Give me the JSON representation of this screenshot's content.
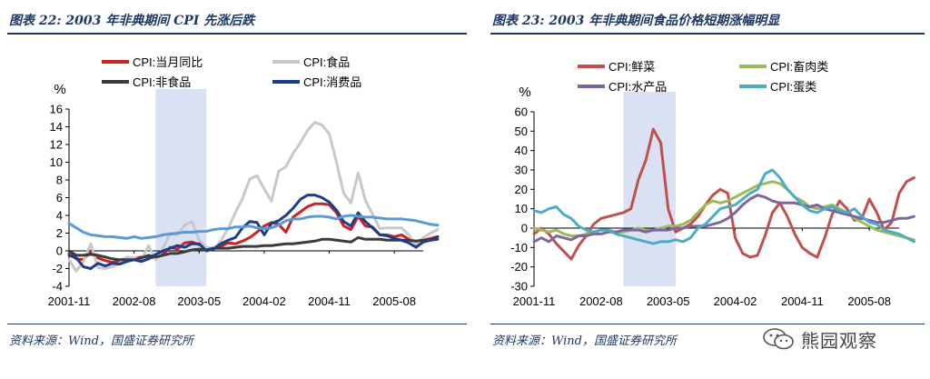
{
  "left_panel": {
    "title": "图表 22:  2003 年非典期间 CPI 先涨后跌",
    "source": "资料来源：Wind，国盛证券研究所"
  },
  "right_panel": {
    "title": "图表 23:  2003 年非典期间食品价格短期涨幅明显",
    "source": "资料来源：Wind，国盛证券研究所"
  },
  "watermark": {
    "text": "熊园观察",
    "icon": "wechat-icon"
  },
  "chart_data": [
    {
      "type": "line",
      "ylabel": "%",
      "ylim": [
        -4,
        16
      ],
      "yticks": [
        -4,
        -2,
        0,
        2,
        4,
        6,
        8,
        10,
        12,
        14,
        16
      ],
      "x_tick_labels": [
        "2001-11",
        "2002-08",
        "2003-05",
        "2004-02",
        "2004-11",
        "2005-08"
      ],
      "x_start": "2001-11",
      "x_end": "2005-12",
      "shaded_region": [
        "2002-11",
        "2003-06"
      ],
      "legend_position": "top",
      "series": [
        {
          "name": "CPI:当月同比",
          "color": "#cc2222",
          "values": [
            -0.3,
            -0.9,
            -1.0,
            0.0,
            -0.8,
            -1.1,
            -1.3,
            -1.1,
            -0.8,
            -0.9,
            -0.7,
            -0.7,
            -0.8,
            -0.4,
            0.4,
            0.2,
            0.9,
            1.0,
            0.7,
            0.3,
            0.3,
            0.5,
            0.9,
            0.8,
            1.1,
            1.5,
            2.1,
            2.8,
            3.2,
            3.0,
            2.1,
            3.8,
            4.4,
            5.0,
            5.3,
            5.3,
            5.2,
            4.3,
            2.8,
            2.4,
            3.9,
            2.8,
            2.7,
            1.8,
            1.8,
            1.6,
            1.8,
            1.3,
            0.9,
            1.2,
            1.4,
            1.6
          ]
        },
        {
          "name": "CPI:食品",
          "color": "#c8c8c8",
          "values": [
            -1.0,
            -2.3,
            -1.2,
            0.8,
            -1.9,
            -2.0,
            -1.8,
            -1.4,
            -0.7,
            -0.8,
            -1.0,
            0.6,
            -1.0,
            0.3,
            2.0,
            1.8,
            2.9,
            3.3,
            1.2,
            0.4,
            0.2,
            1.1,
            2.5,
            4.3,
            5.9,
            8.1,
            8.5,
            7.0,
            5.6,
            9.0,
            9.5,
            11.0,
            12.2,
            13.6,
            14.5,
            14.2,
            13.2,
            10.0,
            6.5,
            5.4,
            8.8,
            5.7,
            4.1,
            2.5,
            2.6,
            2.6,
            2.6,
            1.8,
            0.7,
            1.5,
            2.0,
            2.4
          ]
        },
        {
          "name": "CPI:非食品",
          "color": "#3c3c3c",
          "values": [
            0.0,
            -0.5,
            -0.5,
            -0.4,
            -0.5,
            -0.7,
            -0.9,
            -1.0,
            -1.0,
            -1.0,
            -0.8,
            -0.5,
            -0.7,
            -0.5,
            -0.3,
            -0.3,
            -0.1,
            0.1,
            0.2,
            0.1,
            0.3,
            0.3,
            0.3,
            0.4,
            0.5,
            0.5,
            0.5,
            0.6,
            0.6,
            0.7,
            0.8,
            0.8,
            0.9,
            1.0,
            1.1,
            1.3,
            1.3,
            1.2,
            1.1,
            1.0,
            1.5,
            1.3,
            1.3,
            1.3,
            1.2,
            1.2,
            1.2,
            1.2,
            1.1,
            1.2,
            1.2,
            1.3
          ]
        },
        {
          "name": "CPI:消费品",
          "color": "#1a3e8c",
          "values": [
            -0.5,
            -0.8,
            -1.8,
            -2.0,
            -1.4,
            -1.7,
            -1.4,
            -1.5,
            -1.2,
            -1.0,
            -1.2,
            -0.9,
            -0.4,
            0.0,
            0.3,
            0.6,
            0.4,
            0.8,
            0.8,
            0.0,
            0.2,
            0.8,
            1.2,
            1.5,
            2.6,
            3.3,
            3.2,
            1.8,
            3.1,
            3.4,
            4.0,
            4.8,
            5.8,
            6.3,
            6.3,
            6.0,
            5.5,
            4.6,
            3.3,
            2.8,
            4.3,
            3.3,
            2.6,
            1.8,
            1.7,
            1.4,
            1.2,
            0.9,
            0.4,
            1.0,
            1.2,
            1.6
          ]
        },
        {
          "name": "",
          "color": "#5b9bd5",
          "values": [
            3.1,
            2.6,
            2.1,
            1.8,
            1.7,
            1.6,
            1.6,
            1.5,
            1.4,
            1.6,
            1.4,
            1.5,
            1.6,
            1.8,
            1.9,
            2.0,
            2.1,
            2.1,
            2.2,
            2.2,
            2.4,
            2.5,
            2.5,
            2.7,
            2.7,
            2.8,
            2.6,
            2.5,
            2.6,
            2.9,
            3.4,
            3.6,
            3.6,
            3.8,
            3.9,
            3.9,
            3.8,
            3.6,
            3.9,
            4.0,
            3.9,
            3.8,
            3.8,
            3.7,
            3.6,
            3.6,
            3.6,
            3.5,
            3.4,
            3.2,
            3.0,
            2.9
          ]
        }
      ]
    },
    {
      "type": "line",
      "ylabel": "%",
      "ylim": [
        -30,
        60
      ],
      "yticks": [
        -30,
        -20,
        -10,
        0,
        10,
        20,
        30,
        40,
        50,
        60
      ],
      "x_tick_labels": [
        "2001-11",
        "2002-08",
        "2003-05",
        "2004-02",
        "2004-11",
        "2005-08"
      ],
      "x_start": "2001-11",
      "x_end": "2005-12",
      "shaded_region": [
        "2002-11",
        "2003-06"
      ],
      "legend_position": "top",
      "series": [
        {
          "name": "CPI:鲜菜",
          "color": "#c0504d",
          "values": [
            -3,
            0,
            -3,
            -8,
            -12,
            -16,
            -9,
            -4,
            2,
            5,
            6,
            7,
            8,
            10,
            25,
            35,
            51,
            44,
            10,
            -2,
            0,
            2,
            6,
            12,
            17,
            20,
            18,
            -5,
            -13,
            -15,
            -14,
            -4,
            8,
            13,
            6,
            -3,
            -10,
            -13,
            -15,
            -5,
            7,
            14,
            10,
            4,
            5,
            15,
            8,
            -1,
            3,
            18,
            24,
            26
          ]
        },
        {
          "name": "CPI:畜肉类",
          "color": "#9bbb59",
          "values": [
            0,
            -1,
            -2,
            -1,
            -3,
            -4,
            -4,
            -3,
            -2,
            -1,
            -1,
            -2,
            -2,
            -1,
            0,
            -1,
            -1,
            0,
            1,
            1,
            2,
            4,
            8,
            12,
            14,
            13,
            14,
            16,
            18,
            20,
            22,
            23,
            24,
            23,
            20,
            16,
            14,
            11,
            10,
            11,
            12,
            10,
            8,
            5,
            3,
            1,
            -1,
            -2,
            -3,
            -4,
            -5,
            -6
          ]
        },
        {
          "name": "CPI:水产品",
          "color": "#8064a2",
          "values": [
            -7,
            -5,
            -7,
            -4,
            -5,
            -6,
            -4,
            -4,
            -3,
            -3,
            -2,
            -2,
            -1,
            -1,
            -1,
            -2,
            -1,
            -1,
            -1,
            0,
            0,
            1,
            1,
            1,
            2,
            3,
            5,
            8,
            12,
            15,
            17,
            16,
            14,
            13,
            13,
            13,
            12,
            11,
            12,
            10,
            9,
            8,
            7,
            6,
            5,
            4,
            3,
            3,
            4,
            5,
            5,
            6
          ]
        },
        {
          "name": "CPI:蛋类",
          "color": "#4bacc6",
          "values": [
            9,
            8,
            10,
            11,
            7,
            5,
            1,
            -1,
            -2,
            -1,
            -1,
            -3,
            -4,
            -5,
            -6,
            -7,
            -8,
            -7,
            -7,
            -6,
            -7,
            -5,
            0,
            2,
            6,
            10,
            11,
            12,
            15,
            18,
            20,
            28,
            30,
            26,
            20,
            16,
            12,
            9,
            8,
            10,
            11,
            9,
            8,
            10,
            6,
            3,
            2,
            -1,
            -2,
            -3,
            -5,
            -7
          ]
        }
      ]
    }
  ]
}
